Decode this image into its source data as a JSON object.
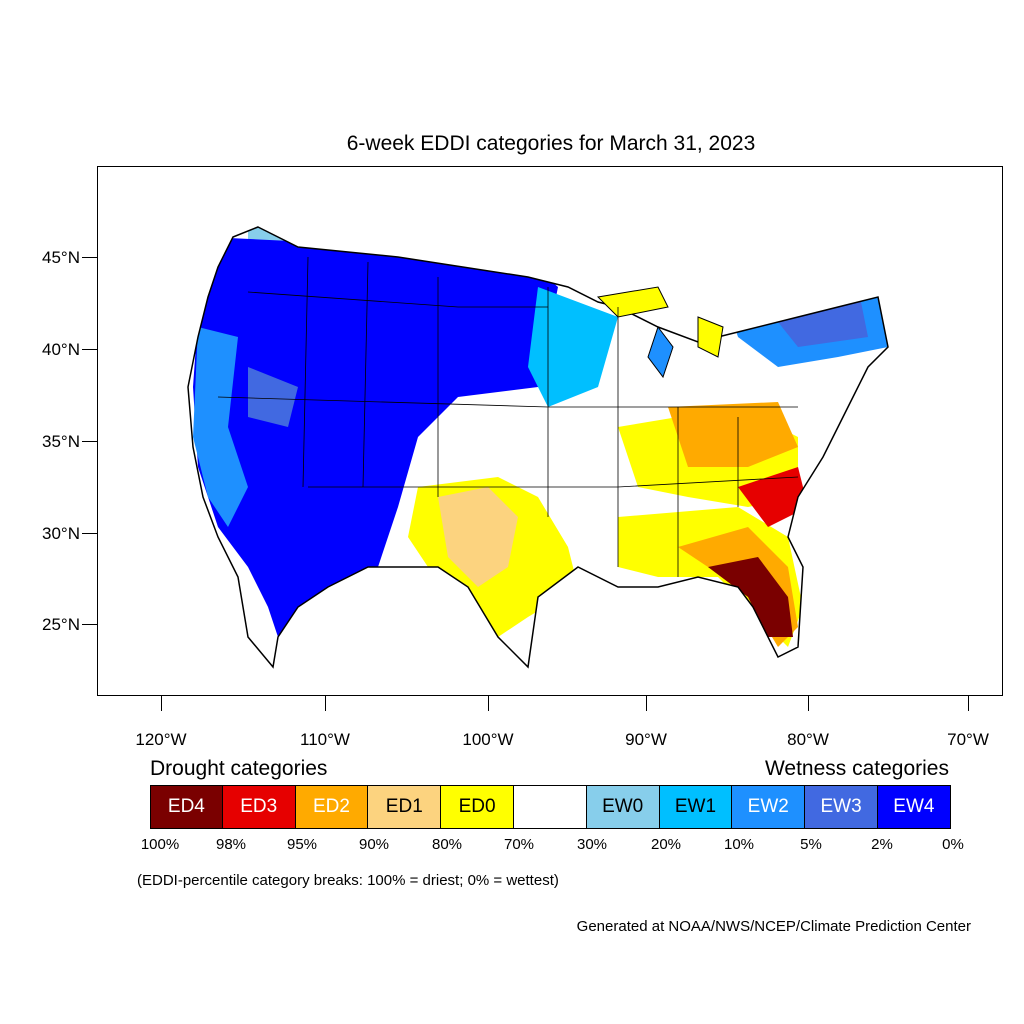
{
  "title": "6-week EDDI categories for March 31, 2023",
  "axes": {
    "lat_labels": [
      "45°N",
      "40°N",
      "35°N",
      "30°N",
      "25°N"
    ],
    "lon_labels": [
      "120°W",
      "110°W",
      "100°W",
      "90°W",
      "80°W",
      "70°W"
    ]
  },
  "legend": {
    "drought_heading": "Drought categories",
    "wetness_heading": "Wetness categories",
    "categories": [
      {
        "label": "ED4",
        "color": "#7a0000",
        "text_color": "#ffffff"
      },
      {
        "label": "ED3",
        "color": "#e60000",
        "text_color": "#ffffff"
      },
      {
        "label": "ED2",
        "color": "#ffaa00",
        "text_color": "#ffffff"
      },
      {
        "label": "ED1",
        "color": "#fcd37f",
        "text_color": "#000000"
      },
      {
        "label": "ED0",
        "color": "#ffff00",
        "text_color": "#000000"
      },
      {
        "label": "",
        "color": "#ffffff",
        "text_color": "#000000"
      },
      {
        "label": "EW0",
        "color": "#87ceeb",
        "text_color": "#000000"
      },
      {
        "label": "EW1",
        "color": "#00bfff",
        "text_color": "#000000"
      },
      {
        "label": "EW2",
        "color": "#1e90ff",
        "text_color": "#ffffff"
      },
      {
        "label": "EW3",
        "color": "#4169e1",
        "text_color": "#ffffff"
      },
      {
        "label": "EW4",
        "color": "#0000ff",
        "text_color": "#ffffff"
      }
    ],
    "breaks": [
      "100%",
      "98%",
      "95%",
      "90%",
      "80%",
      "70%",
      "30%",
      "20%",
      "10%",
      "5%",
      "2%",
      "0%"
    ]
  },
  "note": "(EDDI-percentile category breaks: 100% = driest; 0% = wettest)",
  "credit": "Generated at NOAA/NWS/NCEP/Climate Prediction Center"
}
